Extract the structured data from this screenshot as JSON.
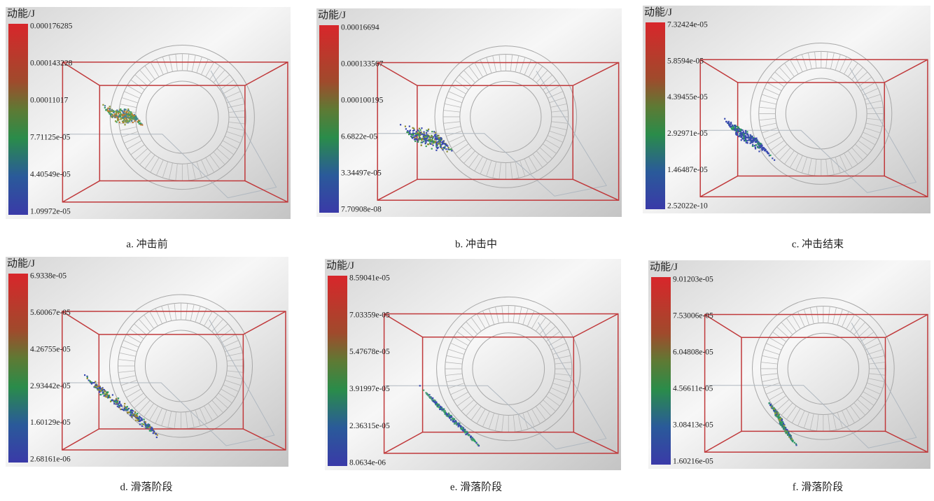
{
  "panels": [
    {
      "legend_title": "动能/J",
      "scale_labels": [
        "0.000176285",
        "0.000143228",
        "0.00011017",
        "7.71125e-05",
        "4.40549e-05",
        "1.09972e-05"
      ],
      "caption": "a. 冲击前"
    },
    {
      "legend_title": "动能/J",
      "scale_labels": [
        "0.00016694",
        "0.000133567",
        "0.000100195",
        "6.6822e-05",
        "3.34497e-05",
        "7.70908e-08"
      ],
      "caption": "b. 冲击中"
    },
    {
      "legend_title": "动能/J",
      "scale_labels": [
        "7.32424e-05",
        "5.8594e-05",
        "4.39455e-05",
        "2.92971e-05",
        "1.46487e-05",
        "2.52022e-10"
      ],
      "caption": "c. 冲击结束"
    },
    {
      "legend_title": "动能/J",
      "scale_labels": [
        "6.9338e-05",
        "5.60067e-05",
        "4.26755e-05",
        "2.93442e-05",
        "1.60129e-05",
        "2.68161e-06"
      ],
      "caption": "d. 滑落阶段"
    },
    {
      "legend_title": "动能/J",
      "scale_labels": [
        "8.59041e-05",
        "7.03359e-05",
        "5.47678e-05",
        "3.91997e-05",
        "2.36315e-05",
        "8.0634e-06"
      ],
      "caption": "e. 滑落阶段"
    },
    {
      "legend_title": "动能/J",
      "scale_labels": [
        "9.01203e-05",
        "7.53006e-05",
        "6.04808e-05",
        "4.56611e-05",
        "3.08413e-05",
        "1.60216e-05"
      ],
      "caption": "f. 滑落阶段"
    }
  ]
}
